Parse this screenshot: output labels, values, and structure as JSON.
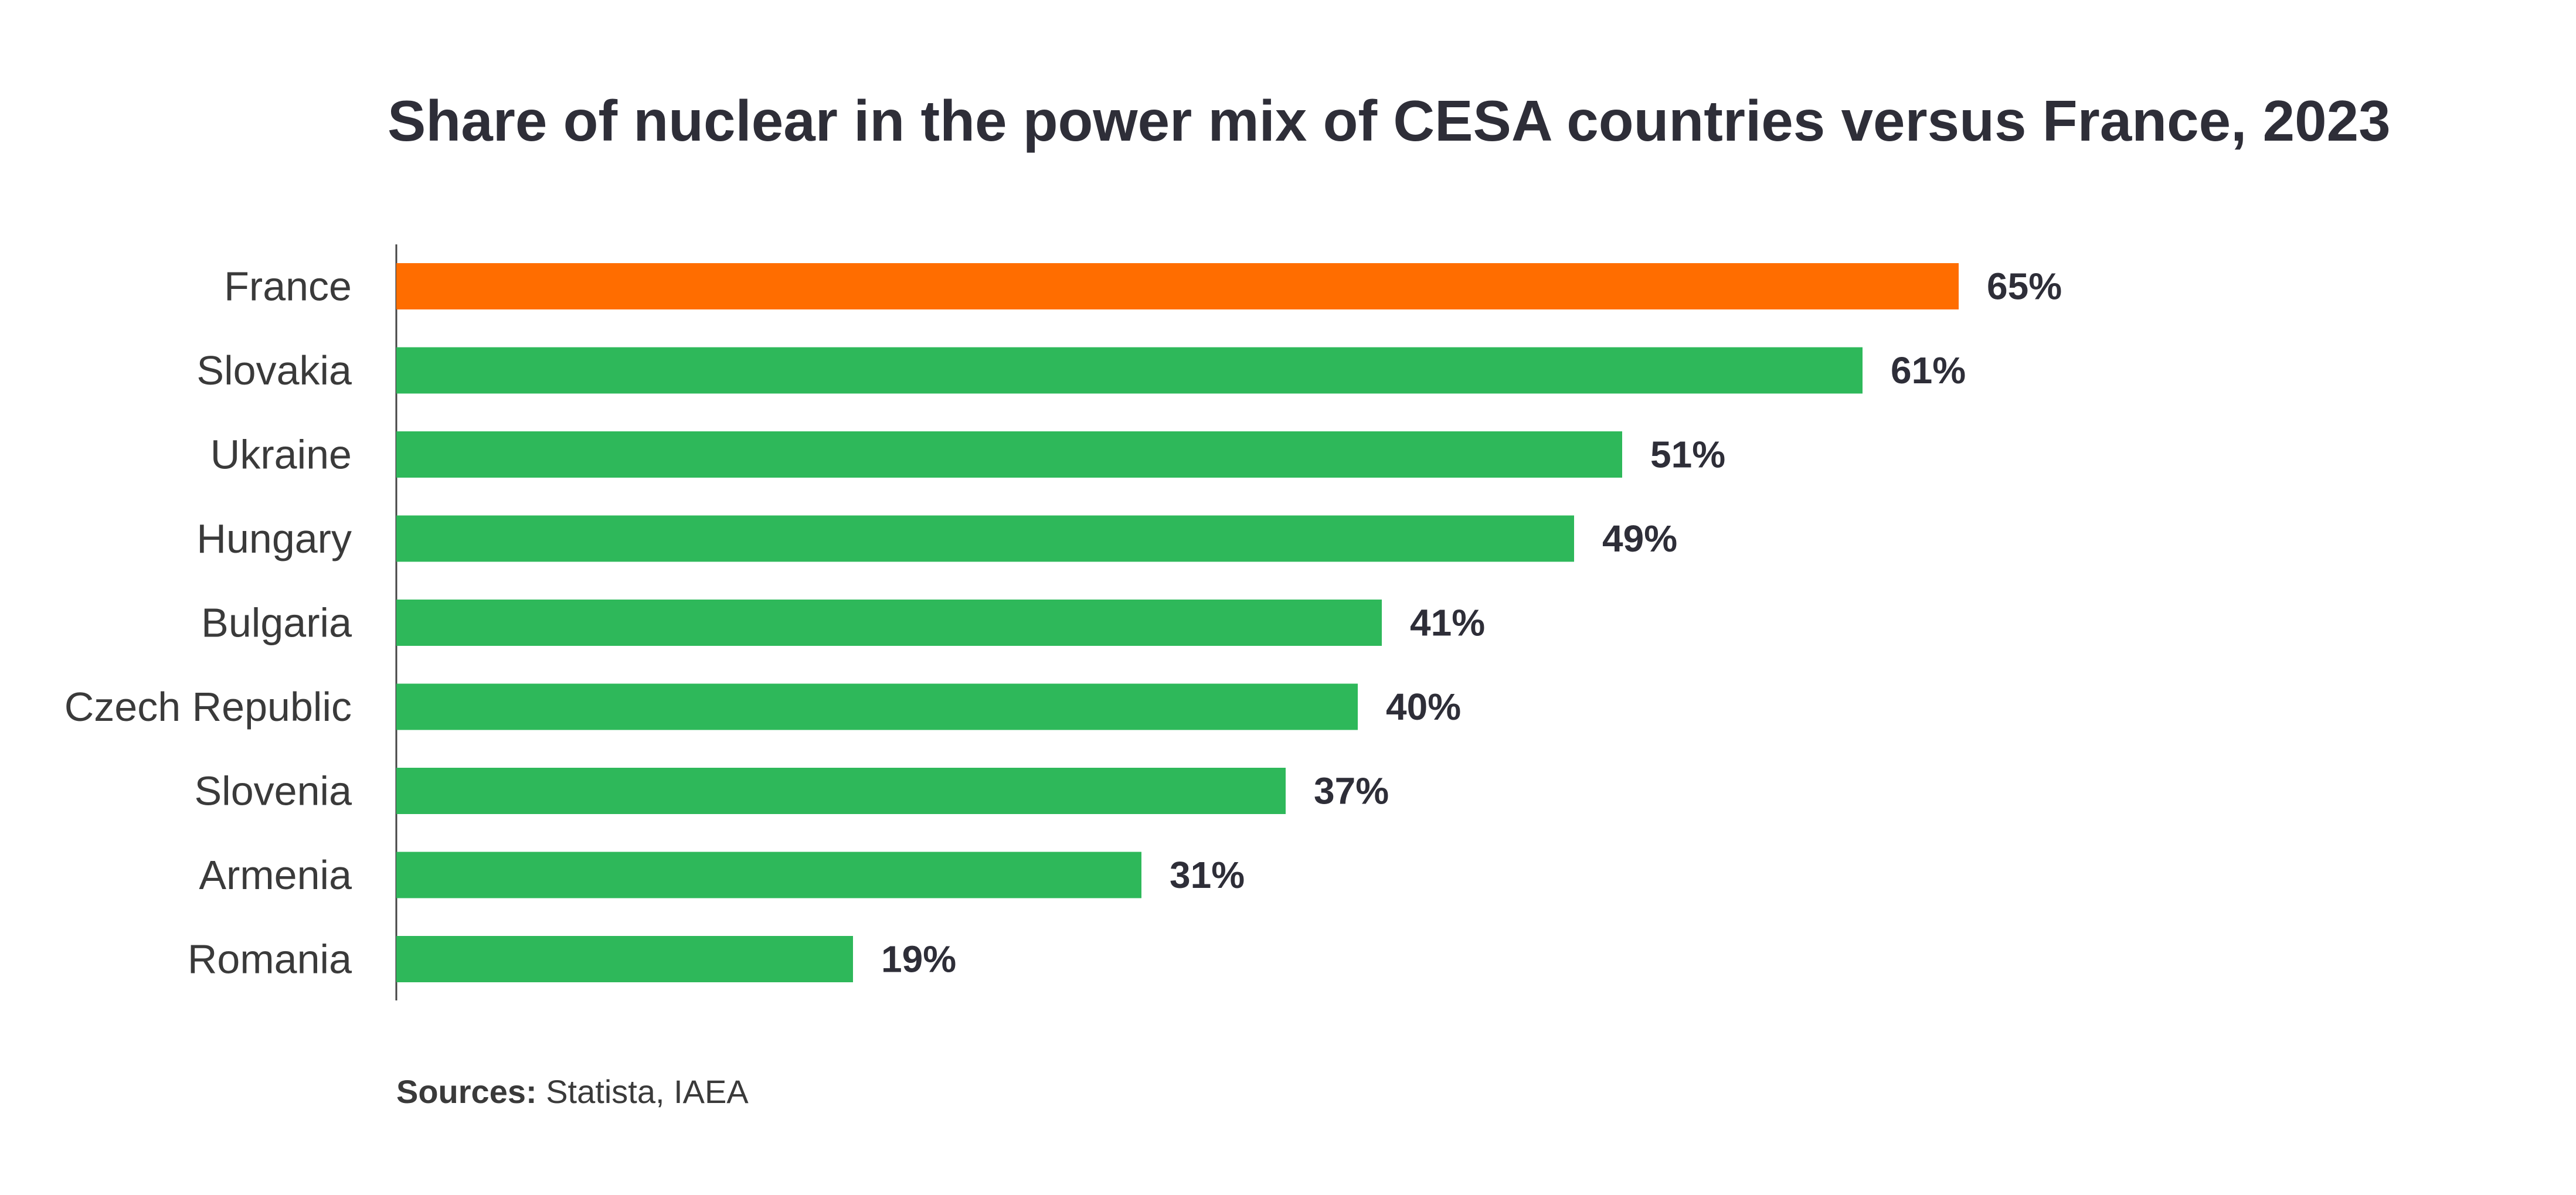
{
  "chart_data": {
    "type": "bar",
    "orientation": "horizontal",
    "title": "Share of nuclear in the power mix of CESA countries versus France, 2023",
    "categories": [
      "France",
      "Slovakia",
      "Ukraine",
      "Hungary",
      "Bulgaria",
      "Czech Republic",
      "Slovenia",
      "Armenia",
      "Romania"
    ],
    "values": [
      65,
      61,
      51,
      49,
      41,
      40,
      37,
      31,
      19
    ],
    "value_labels": [
      "65%",
      "61%",
      "51%",
      "49%",
      "41%",
      "40%",
      "37%",
      "31%",
      "19%"
    ],
    "colors": [
      "#ff6d00",
      "#2eb85a",
      "#2eb85a",
      "#2eb85a",
      "#2eb85a",
      "#2eb85a",
      "#2eb85a",
      "#2eb85a",
      "#2eb85a"
    ],
    "xlabel": "",
    "ylabel": "",
    "xlim": [
      0,
      65
    ],
    "grid": false,
    "legend": "none"
  },
  "source": {
    "label": "Sources:",
    "text": " Statista, IAEA"
  }
}
